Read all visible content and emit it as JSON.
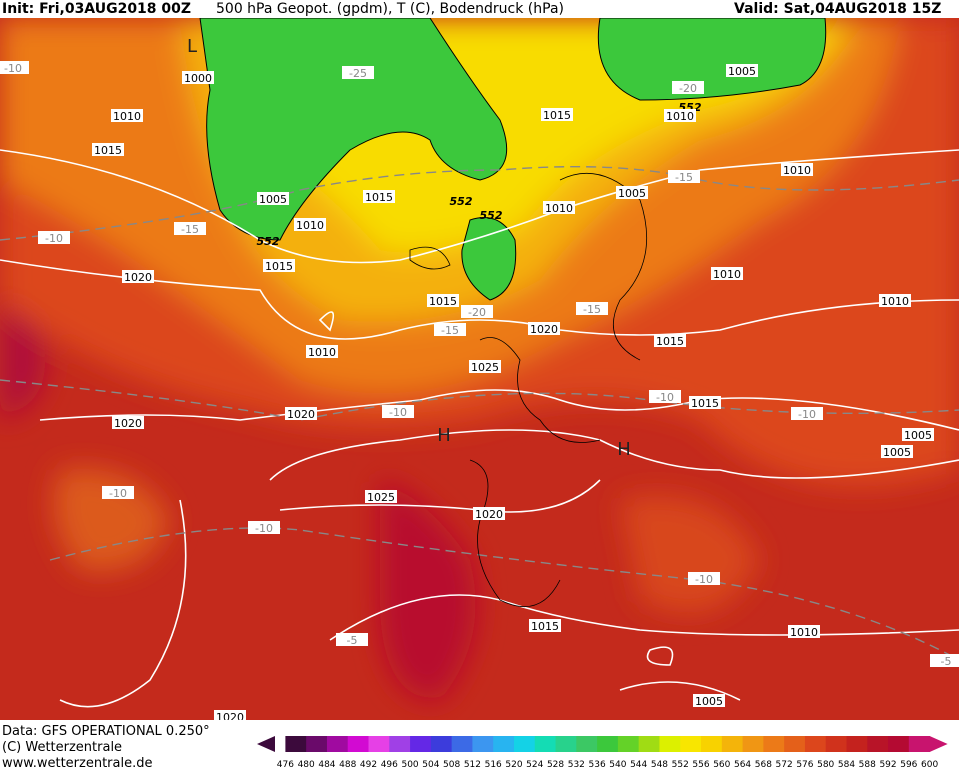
{
  "header": {
    "init": "Init: Fri,03AUG2018 00Z",
    "title": "500 hPa Geopot. (gpdm), T (C), Bodendruck (hPa)",
    "valid": "Valid: Sat,04AUG2018 15Z"
  },
  "map": {
    "labels": [
      "1000",
      "1010",
      "1015",
      "1005",
      "1010",
      "1015",
      "1015",
      "-25",
      "552",
      "552",
      "552",
      "552",
      "1015",
      "1010",
      "1005",
      "-20",
      "1010",
      "1005",
      "-15",
      "1010",
      "-10",
      "-15",
      "1020",
      "1010",
      "1010",
      "1015",
      "-20",
      "-15",
      "1020",
      "-15",
      "1015",
      "1010",
      "1025",
      "-10",
      "1015",
      "1020",
      "1020",
      "-10",
      "-10",
      "1005",
      "1005",
      "1025",
      "-10",
      "1020",
      "-10",
      "-10",
      "1015",
      "1010",
      "-5",
      "-5",
      "1005",
      "1020",
      "-10"
    ],
    "centers": [
      "L",
      "H",
      "H"
    ]
  },
  "footer": {
    "source": "Data: GFS OPERATIONAL 0.250°",
    "copyright": "(C) Wetterzentrale",
    "url": "www.wetterzentrale.de"
  },
  "colorbar": {
    "ticks": [
      476,
      480,
      484,
      488,
      492,
      496,
      500,
      504,
      508,
      512,
      516,
      520,
      524,
      528,
      532,
      536,
      540,
      544,
      548,
      552,
      556,
      560,
      564,
      568,
      572,
      576,
      580,
      584,
      588,
      592,
      596,
      600
    ]
  }
}
